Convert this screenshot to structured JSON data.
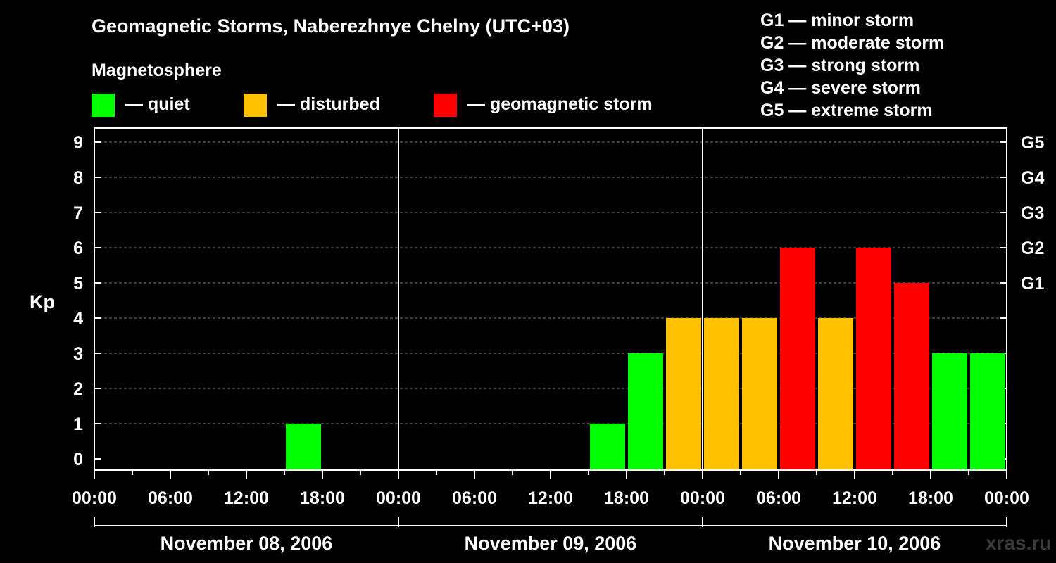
{
  "title": "Geomagnetic Storms, Naberezhnye Chelny (UTC+03)",
  "legend": {
    "heading": "Magnetosphere",
    "items": [
      {
        "label": "— quiet",
        "color": "#00FF00"
      },
      {
        "label": "— disturbed",
        "color": "#FFC000"
      },
      {
        "label": "— geomagnetic storm",
        "color": "#FF0000"
      }
    ]
  },
  "g_scale": [
    "G1 — minor storm",
    "G2 — moderate storm",
    "G3 — strong storm",
    "G4 — severe storm",
    "G5 — extreme storm"
  ],
  "watermark": "xras.ru",
  "chart_data": {
    "type": "bar",
    "title": "Geomagnetic Storms, Naberezhnye Chelny (UTC+03)",
    "ylabel": "Kp",
    "ylim": [
      0,
      9
    ],
    "yticks": [
      "0",
      "1",
      "2",
      "3",
      "4",
      "5",
      "6",
      "7",
      "8",
      "9"
    ],
    "right_ticks": [
      {
        "kp": 5,
        "label": "G1"
      },
      {
        "kp": 6,
        "label": "G2"
      },
      {
        "kp": 7,
        "label": "G3"
      },
      {
        "kp": 8,
        "label": "G4"
      },
      {
        "kp": 9,
        "label": "G5"
      }
    ],
    "x_tick_labels": [
      "00:00",
      "06:00",
      "12:00",
      "18:00",
      "00:00",
      "06:00",
      "12:00",
      "18:00",
      "00:00",
      "06:00",
      "12:00",
      "18:00",
      "00:00"
    ],
    "days": [
      "November 08, 2006",
      "November 09, 2006",
      "November 10, 2006"
    ],
    "interval_hours": 3,
    "values": [
      0,
      0,
      0,
      0,
      0,
      1,
      0,
      0,
      0,
      0,
      0,
      0,
      0,
      1,
      3,
      4,
      4,
      4,
      6,
      4,
      6,
      5,
      3,
      3
    ],
    "colors": {
      "quiet": "#00FF00",
      "disturbed": "#FFC000",
      "storm": "#FF0000"
    }
  }
}
